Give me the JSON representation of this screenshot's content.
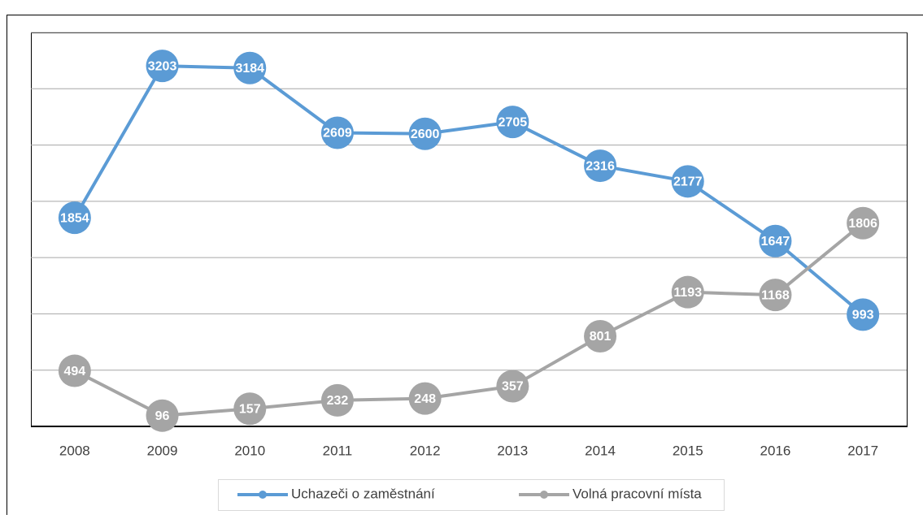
{
  "chart_data": {
    "type": "line",
    "categories": [
      "2008",
      "2009",
      "2010",
      "2011",
      "2012",
      "2013",
      "2014",
      "2015",
      "2016",
      "2017"
    ],
    "series": [
      {
        "name": "Uchazeči o zaměstnání",
        "color": "#5b9bd5",
        "values": [
          1854,
          3203,
          3184,
          2609,
          2600,
          2705,
          2316,
          2177,
          1647,
          993
        ]
      },
      {
        "name": "Volná pracovní místa",
        "color": "#a5a5a5",
        "values": [
          494,
          96,
          157,
          232,
          248,
          357,
          801,
          1193,
          1168,
          1806
        ]
      }
    ],
    "ylim": [
      0,
      3500
    ],
    "yticks": [
      0,
      500,
      1000,
      1500,
      2000,
      2500,
      3000,
      3500
    ],
    "grid": true,
    "legend": "bottom"
  }
}
